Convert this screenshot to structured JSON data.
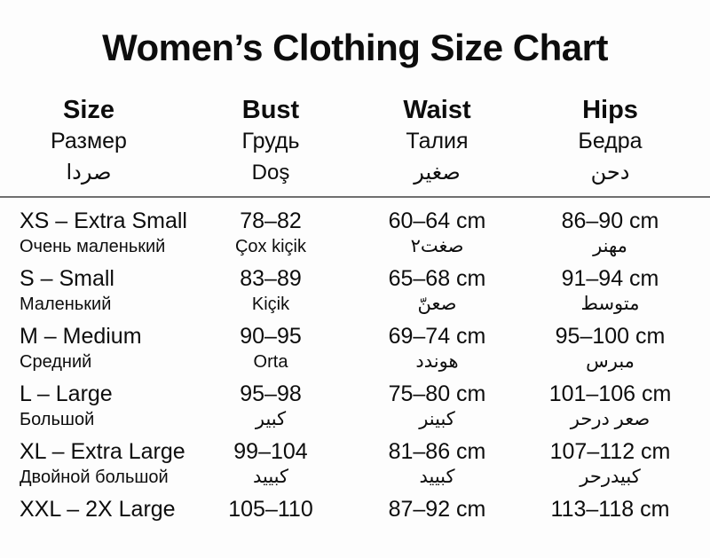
{
  "title": "Women’s Clothing Size Chart",
  "header": {
    "size": {
      "en": "Size",
      "ru": "Размер",
      "ar": "صردا"
    },
    "bust": {
      "en": "Bust",
      "ru": "Грудь",
      "ar": "Doş"
    },
    "waist": {
      "en": "Waist",
      "ru": "Талия",
      "ar": "صغير"
    },
    "hips": {
      "en": "Hips",
      "ru": "Бедра",
      "ar": "دحن"
    }
  },
  "rows": [
    {
      "size": "XS – Extra Small",
      "size_sub": "Очень маленький",
      "bust": "78–82",
      "bust_sub": "Çox kiçik",
      "waist": "60–64 cm",
      "waist_sub": "صغت٢",
      "hips": "86–90 cm",
      "hips_sub": "مهنر"
    },
    {
      "size": "S – Small",
      "size_sub": "Маленький",
      "bust": "83–89",
      "bust_sub": "Kiçik",
      "waist": "65–68 cm",
      "waist_sub": "صعنّ",
      "hips": "91–94 cm",
      "hips_sub": "متوسط"
    },
    {
      "size": "M – Medium",
      "size_sub": "Средний",
      "bust": "90–95",
      "bust_sub": "Orta",
      "waist": "69–74 cm",
      "waist_sub": "هوندد",
      "hips": "95–100 cm",
      "hips_sub": "مبرس"
    },
    {
      "size": "L – Large",
      "size_sub": "Большой",
      "bust": "95–98",
      "bust_sub": "كبير",
      "waist": "75–80 cm",
      "waist_sub": "كبينر",
      "hips": "101–106 cm",
      "hips_sub": "صعر درحر"
    },
    {
      "size": "XL – Extra Large",
      "size_sub": "Двойной большой",
      "bust": "99–104",
      "bust_sub": "كبييد",
      "waist": "81–86 cm",
      "waist_sub": "كبييد",
      "hips": "107–112 cm",
      "hips_sub": "كبيدرحر"
    },
    {
      "size": "XXL – 2X Large",
      "size_sub": "",
      "bust": "105–110",
      "bust_sub": "",
      "waist": "87–92 cm",
      "waist_sub": "",
      "hips": "113–118 cm",
      "hips_sub": ""
    }
  ],
  "colors": {
    "background": "#fdfdfd",
    "text": "#0d0d0d",
    "divider": "#6f6f6f"
  }
}
